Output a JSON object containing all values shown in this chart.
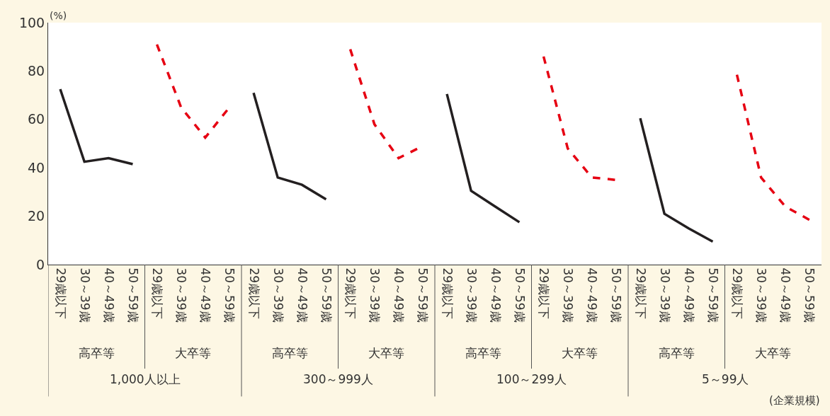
{
  "chart_data": {
    "type": "line",
    "ylabel": "(%)",
    "ylim": [
      0,
      100
    ],
    "yticks": [
      0,
      20,
      40,
      60,
      80,
      100
    ],
    "marker": "none",
    "categories": [
      "29歳以下",
      "30～39歳",
      "40～49歳",
      "50～59歳",
      "29歳以下",
      "30～39歳",
      "40～49歳",
      "50～59歳",
      "29歳以下",
      "30～39歳",
      "40～49歳",
      "50～59歳",
      "29歳以下",
      "30～39歳",
      "40～49歳",
      "50～59歳",
      "29歳以下",
      "30～39歳",
      "40～49歳",
      "50～59歳",
      "29歳以下",
      "30～39歳",
      "40～49歳",
      "50～59歳",
      "29歳以下",
      "30～39歳",
      "40～49歳",
      "50～59歳",
      "29歳以下",
      "30～39歳",
      "40～49歳",
      "50～59歳"
    ],
    "series": [
      {
        "color": "#231f20",
        "line_style": "solid",
        "values": [
          72.5,
          42.5,
          44,
          41.5,
          null,
          null,
          null,
          null,
          71,
          36,
          33,
          27,
          null,
          null,
          null,
          null,
          70.5,
          30.5,
          24,
          17.5,
          null,
          null,
          null,
          null,
          60.5,
          21,
          15,
          9.5,
          null,
          null,
          null,
          null
        ]
      },
      {
        "color": "#e60012",
        "line_style": "dashed",
        "values": [
          null,
          null,
          null,
          null,
          91,
          65,
          52.5,
          65,
          null,
          null,
          null,
          null,
          89,
          58,
          44,
          49,
          null,
          null,
          null,
          null,
          86,
          48,
          36,
          35,
          null,
          null,
          null,
          null,
          78.5,
          36,
          24,
          18.5
        ]
      }
    ],
    "annotations": [
      "高卒等",
      "大卒等",
      "高卒等",
      "大卒等",
      "高卒等",
      "大卒等",
      "高卒等",
      "大卒等",
      "1,000人以上",
      "300～999人",
      "100～299人",
      "5～99人",
      "(企業規模)"
    ]
  }
}
